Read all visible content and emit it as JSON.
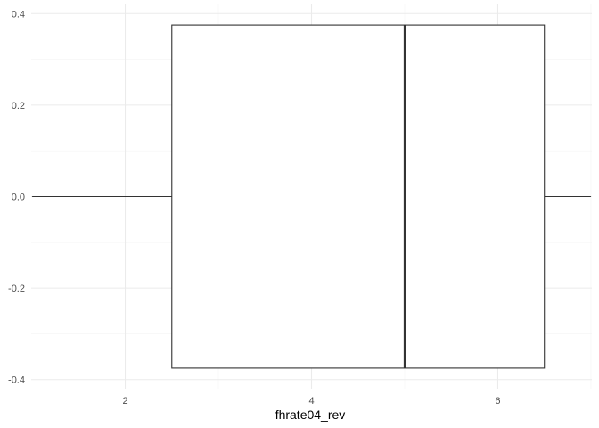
{
  "chart_data": {
    "type": "boxplot",
    "title": "",
    "xlabel": "fhrate04_rev",
    "ylabel": "",
    "x_range": [
      0.99,
      7.01
    ],
    "y_range": [
      -0.42,
      0.42
    ],
    "x_ticks": [
      2,
      4,
      6
    ],
    "x_tick_labels": [
      "2",
      "4",
      "6"
    ],
    "y_ticks": [
      -0.4,
      -0.2,
      0.0,
      0.2,
      0.4
    ],
    "y_tick_labels": [
      "-0.4",
      "-0.2",
      "0.0",
      "0.2",
      "0.4"
    ],
    "grid": true,
    "legend": "none",
    "box": {
      "min": 1,
      "q1": 2.5,
      "median": 5,
      "q3": 6.5,
      "max": 7,
      "y_bottom": -0.375,
      "y_top": 0.375,
      "y_center": 0
    },
    "colors": {
      "background": "#ffffff",
      "grid_major": "#ebebeb",
      "grid_minor": "#f4f4f4",
      "box_stroke": "#333333",
      "box_fill": "#ffffff"
    }
  }
}
